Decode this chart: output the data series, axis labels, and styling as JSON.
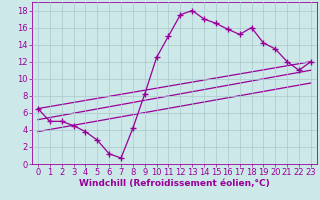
{
  "background_color": "#cce8e8",
  "grid_color": "#aac8cc",
  "line_color": "#990099",
  "marker": "+",
  "markersize": 4,
  "markeredgewidth": 1.0,
  "linewidth": 0.9,
  "xlabel": "Windchill (Refroidissement éolien,°C)",
  "xlabel_fontsize": 6.5,
  "tick_fontsize": 6.0,
  "xlim": [
    -0.5,
    23.5
  ],
  "ylim": [
    0,
    19
  ],
  "xticks": [
    0,
    1,
    2,
    3,
    4,
    5,
    6,
    7,
    8,
    9,
    10,
    11,
    12,
    13,
    14,
    15,
    16,
    17,
    18,
    19,
    20,
    21,
    22,
    23
  ],
  "yticks": [
    0,
    2,
    4,
    6,
    8,
    10,
    12,
    14,
    16,
    18
  ],
  "line1_x": [
    0,
    1,
    2,
    3,
    4,
    5,
    6,
    7,
    8,
    9,
    10,
    11,
    12,
    13,
    14,
    15,
    16,
    17,
    18,
    19,
    20,
    21,
    22,
    23
  ],
  "line1_y": [
    6.5,
    5.0,
    5.0,
    4.5,
    3.8,
    2.8,
    1.2,
    0.7,
    4.2,
    8.2,
    12.5,
    15.0,
    17.5,
    18.0,
    17.0,
    16.5,
    15.8,
    15.2,
    16.0,
    14.2,
    13.5,
    12.0,
    11.0,
    12.0
  ],
  "line2_x": [
    0,
    23
  ],
  "line2_y": [
    6.5,
    12.0
  ],
  "line3_x": [
    0,
    23
  ],
  "line3_y": [
    5.2,
    11.0
  ],
  "line4_x": [
    0,
    23
  ],
  "line4_y": [
    3.8,
    9.5
  ]
}
